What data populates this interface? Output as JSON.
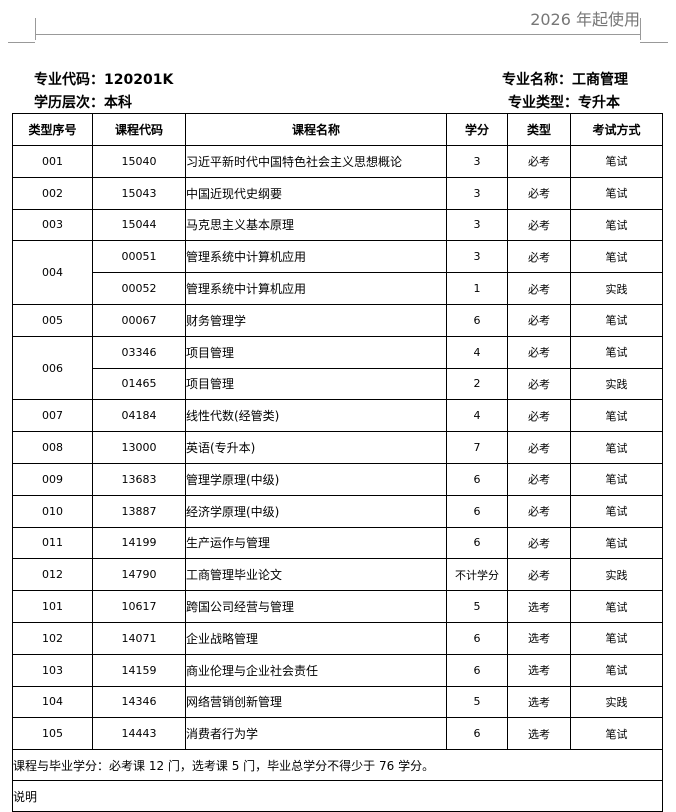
{
  "header": {
    "note": "2026 年起使用"
  },
  "info": {
    "major_code": "专业代码：120201K",
    "major_name": "专业名称：工商管理",
    "level": "学历层次：本科",
    "major_type": "专业类型：专升本"
  },
  "table": {
    "columns": [
      "类型序号",
      "课程代码",
      "课程名称",
      "学分",
      "类型",
      "考试方式"
    ],
    "groups": [
      {
        "seq": "001",
        "courses": [
          [
            "15040",
            "习近平新时代中国特色社会主义思想概论",
            "3",
            "必考",
            "笔试"
          ]
        ]
      },
      {
        "seq": "002",
        "courses": [
          [
            "15043",
            "中国近现代史纲要",
            "3",
            "必考",
            "笔试"
          ]
        ]
      },
      {
        "seq": "003",
        "courses": [
          [
            "15044",
            "马克思主义基本原理",
            "3",
            "必考",
            "笔试"
          ]
        ]
      },
      {
        "seq": "004",
        "courses": [
          [
            "00051",
            "管理系统中计算机应用",
            "3",
            "必考",
            "笔试"
          ],
          [
            "00052",
            "管理系统中计算机应用",
            "1",
            "必考",
            "实践"
          ]
        ]
      },
      {
        "seq": "005",
        "courses": [
          [
            "00067",
            "财务管理学",
            "6",
            "必考",
            "笔试"
          ]
        ]
      },
      {
        "seq": "006",
        "courses": [
          [
            "03346",
            "项目管理",
            "4",
            "必考",
            "笔试"
          ],
          [
            "01465",
            "项目管理",
            "2",
            "必考",
            "实践"
          ]
        ]
      },
      {
        "seq": "007",
        "courses": [
          [
            "04184",
            "线性代数(经管类)",
            "4",
            "必考",
            "笔试"
          ]
        ]
      },
      {
        "seq": "008",
        "courses": [
          [
            "13000",
            "英语(专升本)",
            "7",
            "必考",
            "笔试"
          ]
        ]
      },
      {
        "seq": "009",
        "courses": [
          [
            "13683",
            "管理学原理(中级)",
            "6",
            "必考",
            "笔试"
          ]
        ]
      },
      {
        "seq": "010",
        "courses": [
          [
            "13887",
            "经济学原理(中级)",
            "6",
            "必考",
            "笔试"
          ]
        ]
      },
      {
        "seq": "011",
        "courses": [
          [
            "14199",
            "生产运作与管理",
            "6",
            "必考",
            "笔试"
          ]
        ]
      },
      {
        "seq": "012",
        "courses": [
          [
            "14790",
            "工商管理毕业论文",
            "不计学分",
            "必考",
            "实践"
          ]
        ]
      },
      {
        "seq": "101",
        "courses": [
          [
            "10617",
            "跨国公司经营与管理",
            "5",
            "选考",
            "笔试"
          ]
        ]
      },
      {
        "seq": "102",
        "courses": [
          [
            "14071",
            "企业战略管理",
            "6",
            "选考",
            "笔试"
          ]
        ]
      },
      {
        "seq": "103",
        "courses": [
          [
            "14159",
            "商业伦理与企业社会责任",
            "6",
            "选考",
            "笔试"
          ]
        ]
      },
      {
        "seq": "104",
        "courses": [
          [
            "14346",
            "网络营销创新管理",
            "5",
            "选考",
            "实践"
          ]
        ]
      },
      {
        "seq": "105",
        "courses": [
          [
            "14443",
            "消费者行为学",
            "6",
            "选考",
            "笔试"
          ]
        ]
      }
    ],
    "footer": "课程与毕业学分：必考课 12 门，选考课 5 门，毕业总学分不得少于 76 学分。",
    "note": "说明"
  }
}
